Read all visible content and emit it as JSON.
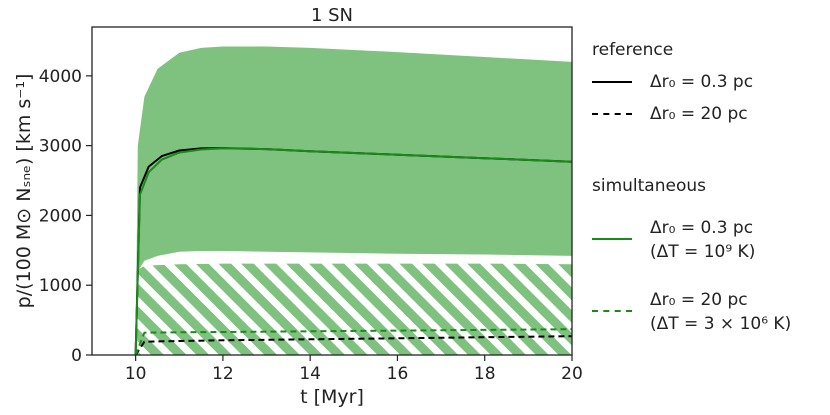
{
  "chart_data": {
    "type": "line",
    "title": "1 SN",
    "xlabel": "t [Myr]",
    "ylabel": "p/(100 M⊙ Nₛₙₑ) [km s⁻¹]",
    "xlim": [
      9,
      20
    ],
    "ylim": [
      0,
      4700
    ],
    "xticks": [
      "10",
      "12",
      "14",
      "16",
      "18",
      "20"
    ],
    "yticks": [
      "0",
      "1000",
      "2000",
      "3000",
      "4000"
    ],
    "grid": false,
    "legend_position": "right, outside the axes",
    "series": [
      {
        "group": "reference",
        "label_main": "Δr₀ = 0.3 pc",
        "label_sub": "",
        "color": "#000000",
        "dash": "solid",
        "x": [
          10,
          10.1,
          10.3,
          10.6,
          11,
          11.5,
          12,
          13,
          14,
          16,
          18,
          20
        ],
        "y": [
          0,
          2400,
          2700,
          2850,
          2930,
          2960,
          2965,
          2950,
          2920,
          2870,
          2820,
          2770
        ]
      },
      {
        "group": "reference",
        "label_main": "Δr₀ = 20 pc",
        "label_sub": "",
        "color": "#000000",
        "dash": "dashed",
        "x": [
          10,
          10.2,
          11,
          12,
          14,
          16,
          18,
          20
        ],
        "y": [
          0,
          190,
          200,
          210,
          225,
          240,
          255,
          270
        ]
      },
      {
        "group": "simultaneous",
        "label_main": "Δr₀ = 0.3 pc",
        "label_sub": "(ΔT = 10⁹ K)",
        "color": "#1a8a1a",
        "dash": "solid",
        "x": [
          10,
          10.1,
          10.3,
          10.6,
          11,
          11.5,
          12,
          13,
          14,
          16,
          18,
          20
        ],
        "y": [
          0,
          2300,
          2620,
          2800,
          2900,
          2945,
          2960,
          2950,
          2920,
          2870,
          2820,
          2770
        ]
      },
      {
        "group": "simultaneous",
        "label_main": "Δr₀ = 20 pc",
        "label_sub": "(ΔT = 3 × 10⁶ K)",
        "color": "#1a8a1a",
        "dash": "dashed",
        "x": [
          10,
          10.2,
          11,
          12,
          14,
          16,
          18,
          20
        ],
        "y": [
          0,
          320,
          325,
          330,
          340,
          350,
          360,
          370
        ]
      }
    ],
    "bands": [
      {
        "style": "solid",
        "color": "#7fc27f",
        "x": [
          10,
          10.05,
          10.2,
          10.5,
          11,
          11.5,
          12,
          13,
          14,
          16,
          18,
          20
        ],
        "upper": [
          0,
          3000,
          3700,
          4100,
          4330,
          4400,
          4420,
          4420,
          4400,
          4340,
          4270,
          4200
        ],
        "lower": [
          0,
          1200,
          1350,
          1420,
          1480,
          1490,
          1490,
          1480,
          1470,
          1450,
          1440,
          1420
        ]
      },
      {
        "style": "hatched",
        "color": "#7fc27f",
        "x": [
          10,
          10.05,
          10.2,
          11,
          12,
          14,
          16,
          18,
          20
        ],
        "upper": [
          0,
          1220,
          1280,
          1300,
          1310,
          1310,
          1310,
          1310,
          1300
        ],
        "lower": [
          0,
          0,
          0,
          0,
          0,
          0,
          0,
          0,
          0
        ]
      }
    ]
  },
  "legend": {
    "reference_title": "reference",
    "simultaneous_title": "simultaneous"
  }
}
